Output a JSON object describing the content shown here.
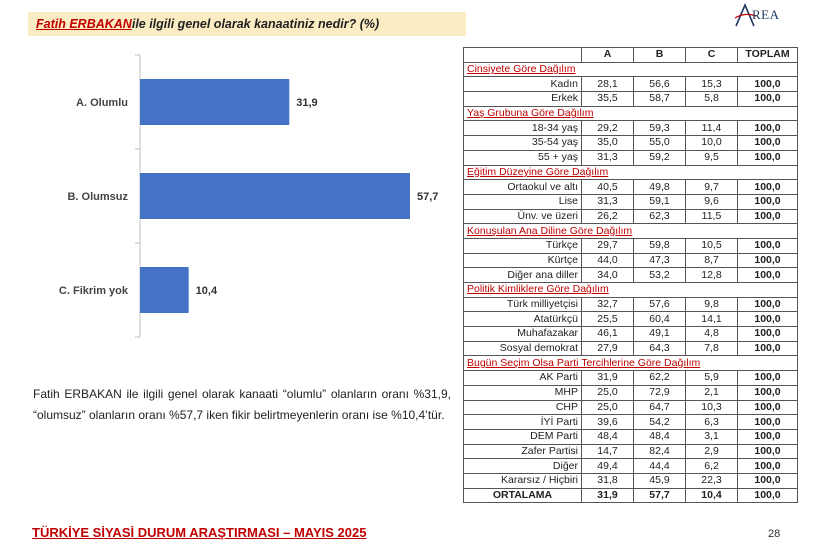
{
  "title": {
    "name": "Fatih ERBAKAN",
    "rest": " ile ilgili genel olarak kanaatiniz nedir? (%)"
  },
  "logo_text": "REA",
  "chart_data": {
    "type": "bar",
    "orientation": "horizontal",
    "categories": [
      "A. Olumlu",
      "B. Olumsuz",
      "C. Fikrim yok"
    ],
    "values": [
      31.9,
      57.7,
      10.4
    ],
    "value_labels": [
      "31,9",
      "57,7",
      "10,4"
    ],
    "bar_color": "#4472c4",
    "xlim": [
      0,
      60
    ]
  },
  "description": "Fatih ERBAKAN ile ilgili genel olarak kanaati “olumlu” olanların oranı %31,9, “olumsuz” olanların oranı %57,7 iken fikir belirtmeyenlerin oranı ise %10,4’tür.",
  "table": {
    "headers": [
      "",
      "A",
      "B",
      "C",
      "TOPLAM"
    ],
    "sections": [
      {
        "title": "Cinsiyete Göre Dağılım",
        "rows": [
          {
            "label": "Kadın",
            "a": "28,1",
            "b": "56,6",
            "c": "15,3",
            "t": "100,0"
          },
          {
            "label": "Erkek",
            "a": "35,5",
            "b": "58,7",
            "c": "5,8",
            "t": "100,0"
          }
        ]
      },
      {
        "title": "Yaş Grubuna Göre Dağılım",
        "rows": [
          {
            "label": "18-34 yaş",
            "a": "29,2",
            "b": "59,3",
            "c": "11,4",
            "t": "100,0"
          },
          {
            "label": "35-54 yaş",
            "a": "35,0",
            "b": "55,0",
            "c": "10,0",
            "t": "100,0"
          },
          {
            "label": "55 + yaş",
            "a": "31,3",
            "b": "59,2",
            "c": "9,5",
            "t": "100,0"
          }
        ]
      },
      {
        "title": "Eğitim Düzeyine Göre Dağılım",
        "rows": [
          {
            "label": "Ortaokul ve altı",
            "a": "40,5",
            "b": "49,8",
            "c": "9,7",
            "t": "100,0"
          },
          {
            "label": "Lise",
            "a": "31,3",
            "b": "59,1",
            "c": "9,6",
            "t": "100,0"
          },
          {
            "label": "Ünv. ve üzeri",
            "a": "26,2",
            "b": "62,3",
            "c": "11,5",
            "t": "100,0"
          }
        ]
      },
      {
        "title": "Konuşulan Ana Diline Göre Dağılım",
        "rows": [
          {
            "label": "Türkçe",
            "a": "29,7",
            "b": "59,8",
            "c": "10,5",
            "t": "100,0"
          },
          {
            "label": "Kürtçe",
            "a": "44,0",
            "b": "47,3",
            "c": "8,7",
            "t": "100,0"
          },
          {
            "label": "Diğer ana diller",
            "a": "34,0",
            "b": "53,2",
            "c": "12,8",
            "t": "100,0"
          }
        ]
      },
      {
        "title": "Politik Kimliklere Göre Dağılım",
        "rows": [
          {
            "label": "Türk milliyetçisi",
            "a": "32,7",
            "b": "57,6",
            "c": "9,8",
            "t": "100,0"
          },
          {
            "label": "Atatürkçü",
            "a": "25,5",
            "b": "60,4",
            "c": "14,1",
            "t": "100,0"
          },
          {
            "label": "Muhafazakar",
            "a": "46,1",
            "b": "49,1",
            "c": "4,8",
            "t": "100,0"
          },
          {
            "label": "Sosyal demokrat",
            "a": "27,9",
            "b": "64,3",
            "c": "7,8",
            "t": "100,0"
          }
        ]
      },
      {
        "title": "Bugün Seçim Olsa Parti Tercihlerine Göre Dağılım",
        "rows": [
          {
            "label": "AK Parti",
            "a": "31,9",
            "b": "62,2",
            "c": "5,9",
            "t": "100,0"
          },
          {
            "label": "MHP",
            "a": "25,0",
            "b": "72,9",
            "c": "2,1",
            "t": "100,0"
          },
          {
            "label": "CHP",
            "a": "25,0",
            "b": "64,7",
            "c": "10,3",
            "t": "100,0"
          },
          {
            "label": "İYİ Parti",
            "a": "39,6",
            "b": "54,2",
            "c": "6,3",
            "t": "100,0"
          },
          {
            "label": "DEM Parti",
            "a": "48,4",
            "b": "48,4",
            "c": "3,1",
            "t": "100,0"
          },
          {
            "label": "Zafer Partisi",
            "a": "14,7",
            "b": "82,4",
            "c": "2,9",
            "t": "100,0"
          },
          {
            "label": "Diğer",
            "a": "49,4",
            "b": "44,4",
            "c": "6,2",
            "t": "100,0"
          },
          {
            "label": "Kararsız / Hiçbiri",
            "a": "31,8",
            "b": "45,9",
            "c": "22,3",
            "t": "100,0"
          }
        ]
      }
    ],
    "average": {
      "label": "ORTALAMA",
      "a": "31,9",
      "b": "57,7",
      "c": "10,4",
      "t": "100,0"
    }
  },
  "footer": "TÜRKİYE SİYASİ DURUM ARAŞTIRMASI – MAYIS 2025",
  "page_number": "28"
}
